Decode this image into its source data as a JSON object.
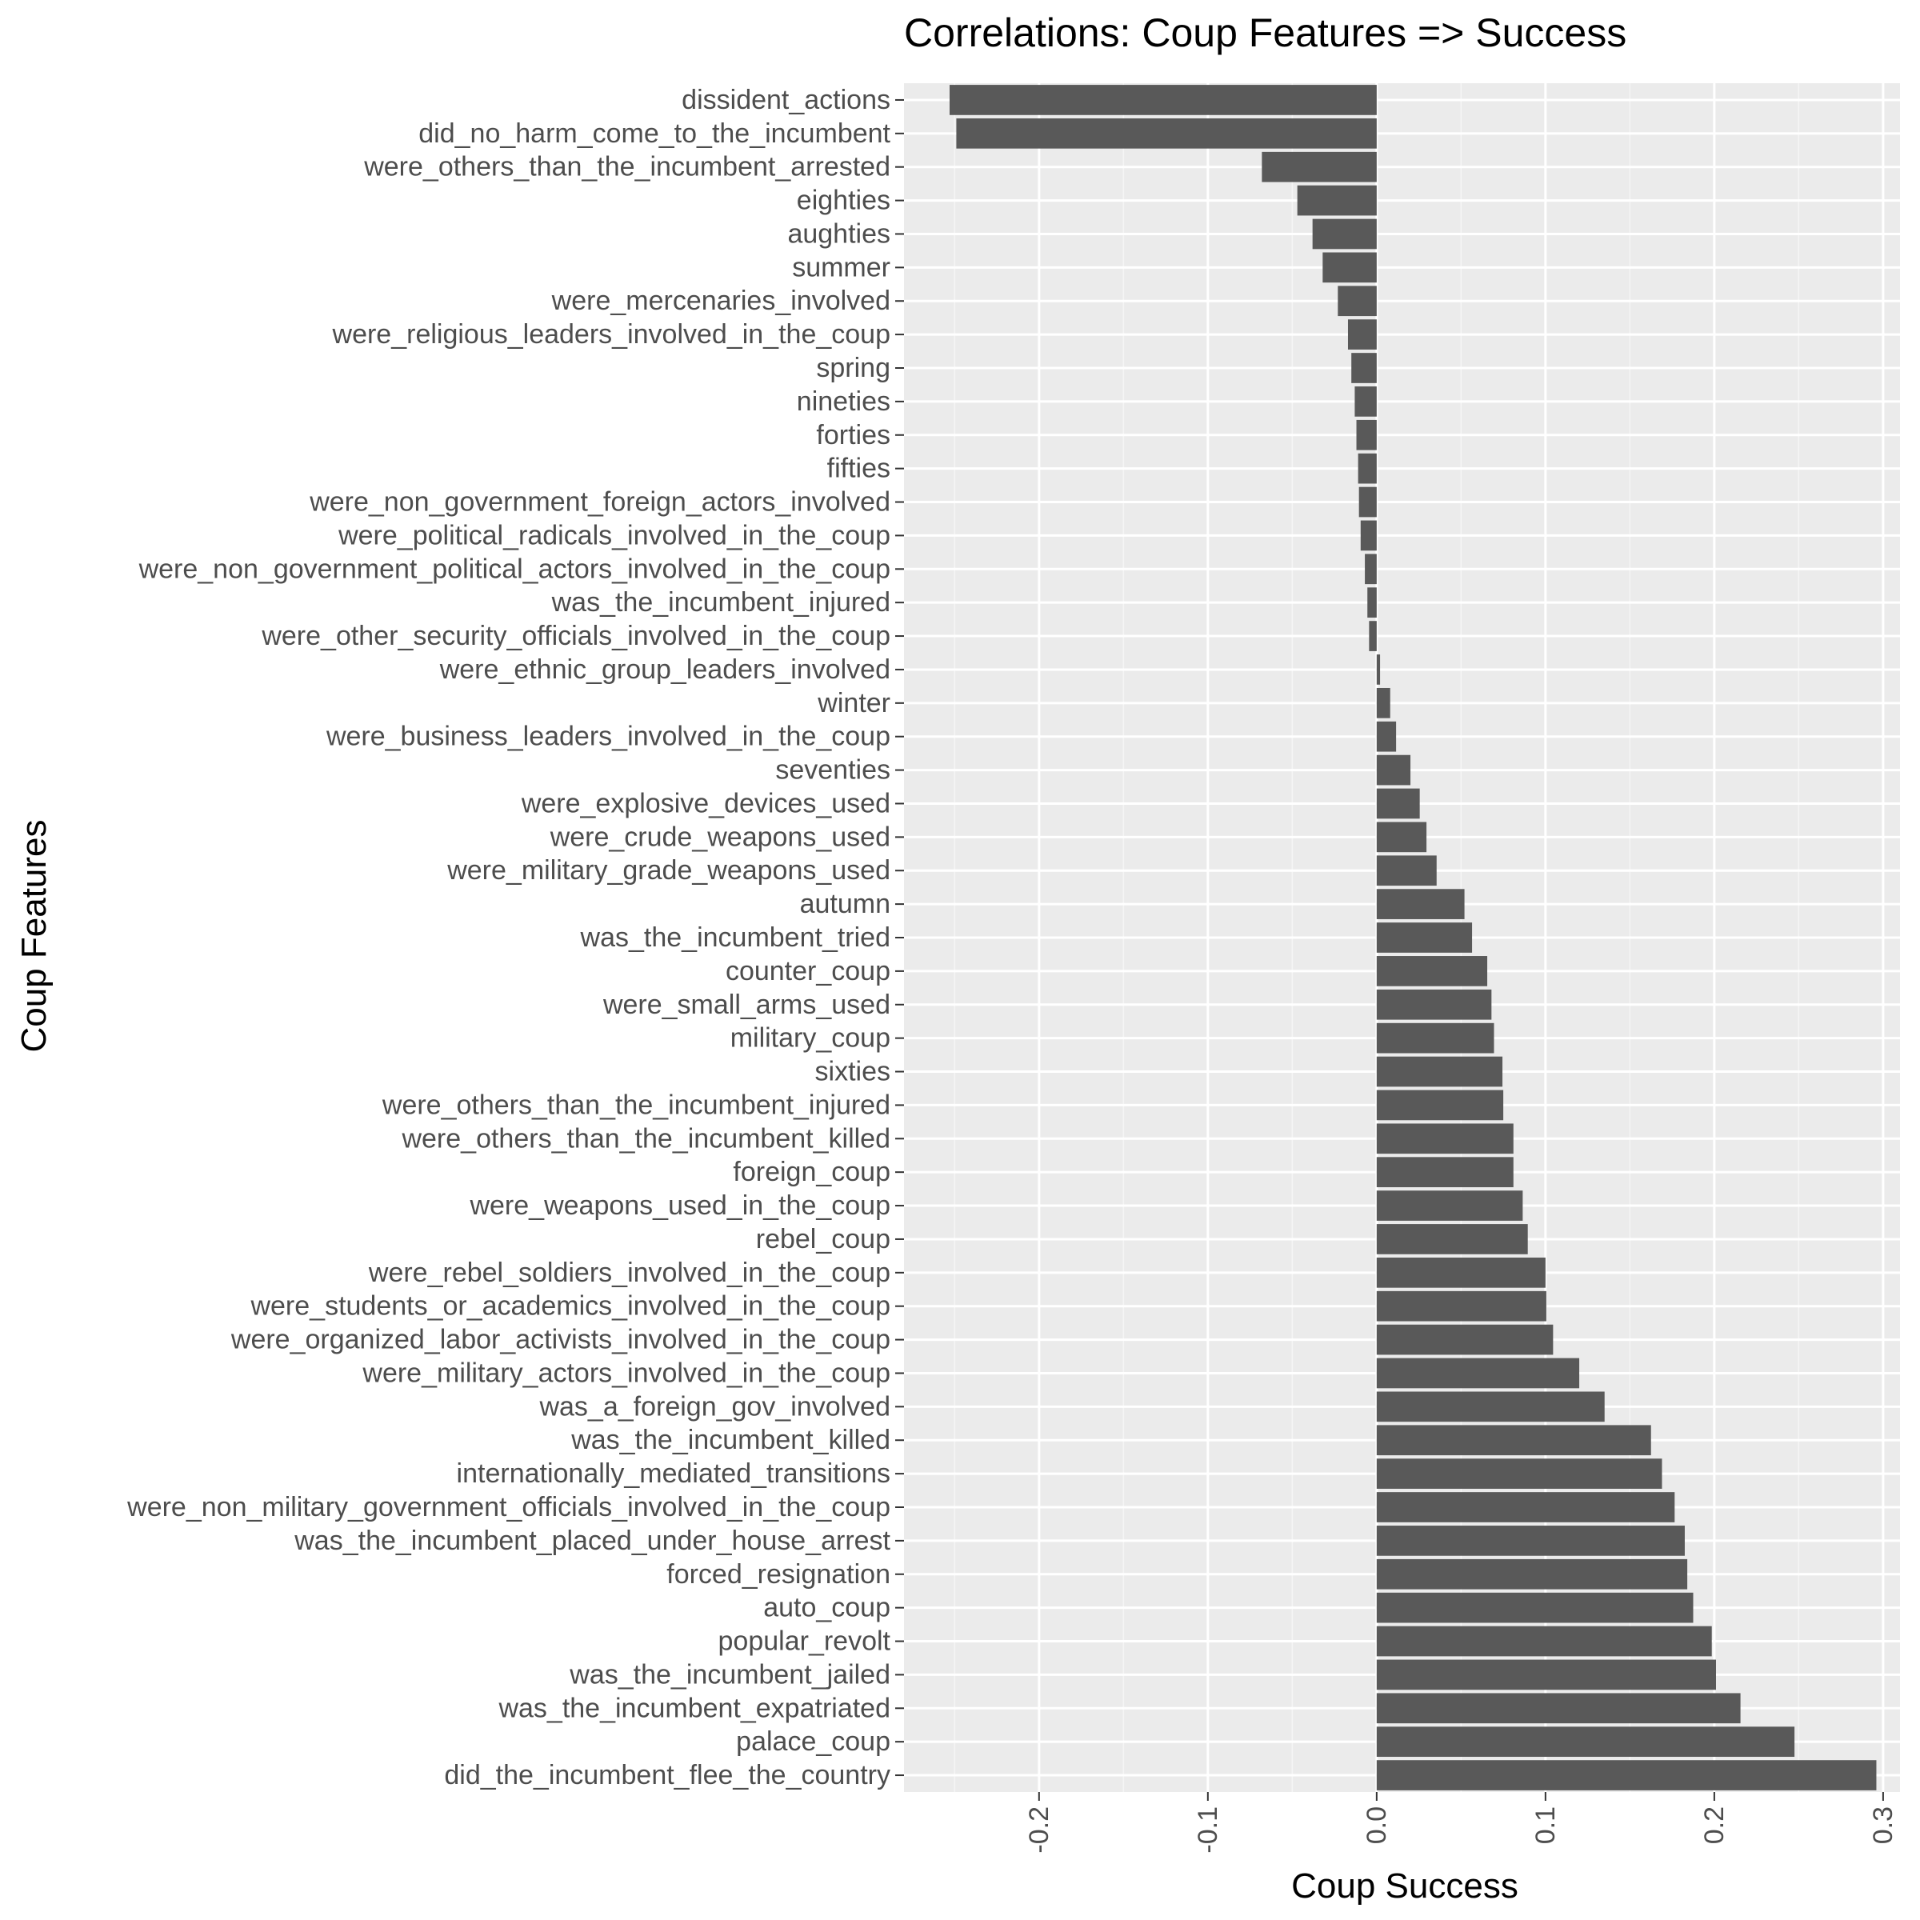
{
  "chart_data": {
    "type": "bar",
    "orientation": "horizontal",
    "title": "Correlations: Coup Features => Success",
    "xlabel": "Coup Success",
    "ylabel": "Coup Features",
    "xlim": [
      -0.28,
      0.31
    ],
    "x_ticks": [
      -0.2,
      -0.1,
      0.0,
      0.1,
      0.2,
      0.3
    ],
    "x_tick_labels": [
      "-0.2",
      "-0.1",
      "0.0",
      "0.1",
      "0.2",
      "0.3"
    ],
    "grid": true,
    "categories": [
      "dissident_actions",
      "did_no_harm_come_to_the_incumbent",
      "were_others_than_the_incumbent_arrested",
      "eighties",
      "aughties",
      "summer",
      "were_mercenaries_involved",
      "were_religious_leaders_involved_in_the_coup",
      "spring",
      "nineties",
      "forties",
      "fifties",
      "were_non_government_foreign_actors_involved",
      "were_political_radicals_involved_in_the_coup",
      "were_non_government_political_actors_involved_in_the_coup",
      "was_the_incumbent_injured",
      "were_other_security_officials_involved_in_the_coup",
      "were_ethnic_group_leaders_involved",
      "winter",
      "were_business_leaders_involved_in_the_coup",
      "seventies",
      "were_explosive_devices_used",
      "were_crude_weapons_used",
      "were_military_grade_weapons_used",
      "autumn",
      "was_the_incumbent_tried",
      "counter_coup",
      "were_small_arms_used",
      "military_coup",
      "sixties",
      "were_others_than_the_incumbent_injured",
      "were_others_than_the_incumbent_killed",
      "foreign_coup",
      "were_weapons_used_in_the_coup",
      "rebel_coup",
      "were_rebel_soldiers_involved_in_the_coup",
      "were_students_or_academics_involved_in_the_coup",
      "were_organized_labor_activists_involved_in_the_coup",
      "were_military_actors_involved_in_the_coup",
      "was_a_foreign_gov_involved",
      "was_the_incumbent_killed",
      "internationally_mediated_transitions",
      "were_non_military_government_officials_involved_in_the_coup",
      "was_the_incumbent_placed_under_house_arrest",
      "forced_resignation",
      "auto_coup",
      "popular_revolt",
      "was_the_incumbent_jailed",
      "was_the_incumbent_expatriated",
      "palace_coup",
      "did_the_incumbent_flee_the_country"
    ],
    "values": [
      -0.253,
      -0.249,
      -0.068,
      -0.047,
      -0.038,
      -0.032,
      -0.023,
      -0.017,
      -0.015,
      -0.013,
      -0.012,
      -0.011,
      -0.0105,
      -0.0095,
      -0.007,
      -0.0055,
      -0.0045,
      0.002,
      0.008,
      0.0115,
      0.02,
      0.0255,
      0.0295,
      0.0355,
      0.052,
      0.0565,
      0.0655,
      0.068,
      0.0695,
      0.0745,
      0.075,
      0.081,
      0.081,
      0.0865,
      0.0895,
      0.1,
      0.1005,
      0.1045,
      0.12,
      0.135,
      0.1625,
      0.169,
      0.1765,
      0.1825,
      0.184,
      0.1875,
      0.1985,
      0.201,
      0.2155,
      0.2475,
      0.296
    ],
    "colors": {
      "bar": "#595959",
      "panel": "#ebebeb",
      "grid_major": "#ffffff",
      "grid_minor": "#f5f5f5",
      "tick": "#333333",
      "tick_text": "#4d4d4d",
      "text": "#000000"
    }
  }
}
